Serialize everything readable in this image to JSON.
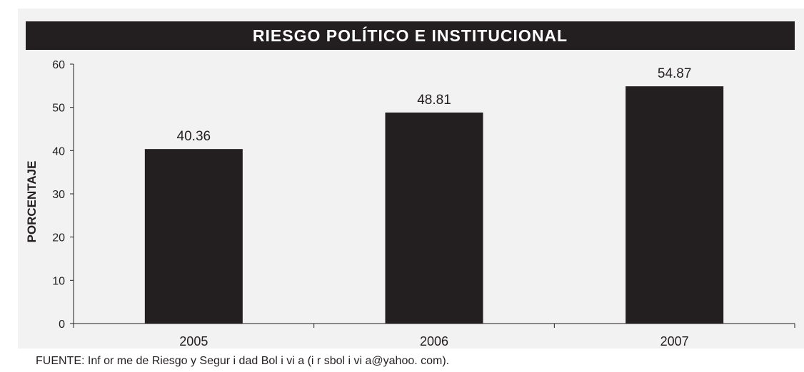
{
  "chart_data": {
    "type": "bar",
    "title": "RIESGO POLÍTICO E INSTITUCIONAL",
    "ylabel": "PORCENTAJE",
    "xlabel": "",
    "categories": [
      "2005",
      "2006",
      "2007"
    ],
    "values": [
      40.36,
      48.81,
      54.87
    ],
    "value_labels": [
      "40.36",
      "48.81",
      "54.87"
    ],
    "ylim": [
      0,
      60
    ],
    "yticks": [
      0,
      10,
      20,
      30,
      40,
      50,
      60
    ],
    "grid": false,
    "legend": "none",
    "bar_color": "#231f20"
  },
  "footer": {
    "source": "FUENTE: Inf or me de Riesgo y Segur i dad Bol i vi a (i r sbol i vi a@yahoo. com)."
  },
  "colors": {
    "panel_background": "#f2f2f2",
    "title_background": "#231f20",
    "title_text": "#ffffff"
  }
}
